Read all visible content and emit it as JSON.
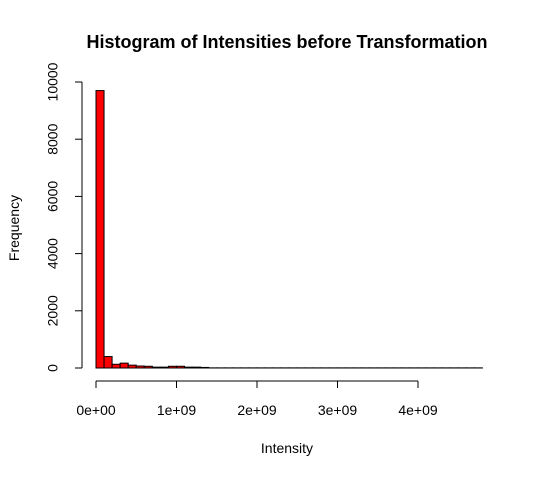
{
  "chart_data": {
    "type": "bar",
    "title": "Histogram of Intensities before Transformation",
    "xlabel": "Intensity",
    "ylabel": "Frequency",
    "xlim": [
      0,
      4800000000
    ],
    "ylim": [
      0,
      10000
    ],
    "xticks": [
      {
        "value": 0,
        "label": "0e+00"
      },
      {
        "value": 1000000000,
        "label": "1e+09"
      },
      {
        "value": 2000000000,
        "label": "2e+09"
      },
      {
        "value": 3000000000,
        "label": "3e+09"
      },
      {
        "value": 4000000000,
        "label": "4e+09"
      }
    ],
    "yticks": [
      {
        "value": 0,
        "label": "0"
      },
      {
        "value": 2000,
        "label": "2000"
      },
      {
        "value": 4000,
        "label": "4000"
      },
      {
        "value": 6000,
        "label": "6000"
      },
      {
        "value": 8000,
        "label": "8000"
      },
      {
        "value": 10000,
        "label": "10000"
      }
    ],
    "bin_width": 100000000,
    "bins_start": 0,
    "values": [
      9700,
      400,
      130,
      170,
      100,
      70,
      60,
      30,
      30,
      60,
      60,
      30,
      30,
      20,
      5,
      5,
      5,
      5,
      5,
      5,
      5,
      5,
      5,
      5,
      5,
      5,
      5,
      5,
      5,
      5,
      5,
      5,
      5,
      5,
      5,
      5,
      5,
      5,
      5,
      5,
      5,
      5,
      5,
      5,
      5,
      5,
      5,
      5
    ],
    "bar_color": "#ff0000",
    "bar_outline": "#000000",
    "grid": false,
    "legend": "none"
  }
}
